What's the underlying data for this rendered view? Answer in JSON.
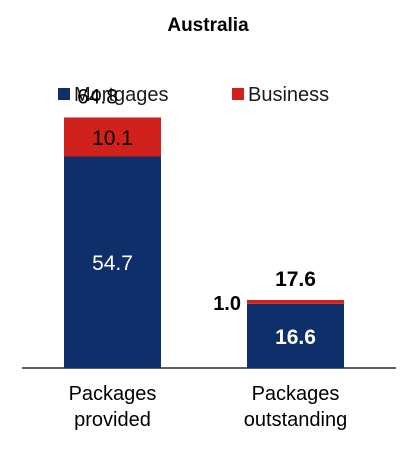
{
  "chart_data": {
    "type": "bar",
    "stacked": true,
    "title": "Australia",
    "categories": [
      [
        "Packages",
        "provided"
      ],
      [
        "Packages",
        "outstanding"
      ]
    ],
    "series": [
      {
        "name": "Mortgages",
        "color": "#0f2f6b",
        "values": [
          54.7,
          16.6
        ],
        "value_labels": [
          "54.7",
          "16.6"
        ]
      },
      {
        "name": "Business",
        "color": "#d1211c",
        "values": [
          10.1,
          1.0
        ],
        "value_labels": [
          "10.1",
          "1.0"
        ]
      }
    ],
    "totals": [
      64.8,
      17.6
    ],
    "total_labels": [
      "64.8",
      "17.6"
    ],
    "legend_position": "top",
    "grid": false,
    "ylim": [
      0,
      75
    ]
  }
}
